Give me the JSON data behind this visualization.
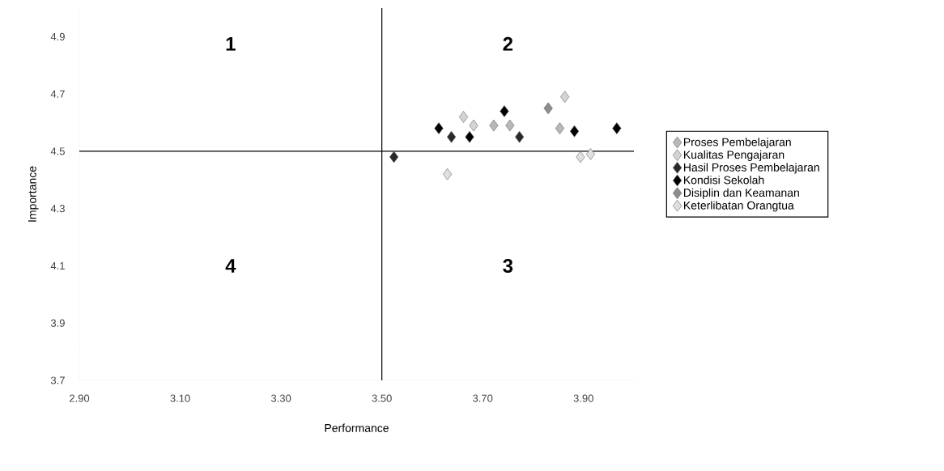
{
  "chart_data": {
    "type": "scatter",
    "xlabel": "Performance",
    "ylabel": "Importance",
    "xlim": [
      2.9,
      4.0
    ],
    "ylim": [
      3.7,
      5.0
    ],
    "xticks": [
      {
        "value": 2.9,
        "label": "2.90"
      },
      {
        "value": 3.1,
        "label": "3.10"
      },
      {
        "value": 3.3,
        "label": "3.30"
      },
      {
        "value": 3.5,
        "label": "3.50"
      },
      {
        "value": 3.7,
        "label": "3.70"
      },
      {
        "value": 3.9,
        "label": "3.90"
      }
    ],
    "yticks": [
      3.7,
      3.9,
      4.1,
      4.3,
      4.5,
      4.7,
      4.9
    ],
    "marker": "diamond",
    "legend": "right",
    "grid": false,
    "ref_lines": [
      {
        "axis": "x",
        "value": 3.5,
        "color": "#000000"
      },
      {
        "axis": "y",
        "value": 4.5,
        "color": "#000000"
      }
    ],
    "annotations": [
      "1",
      "2",
      "3",
      "4"
    ],
    "series": [
      {
        "name": "Proses Pembelajaran",
        "color": "#b8b8b8",
        "x": [
          3.722,
          3.754,
          3.853
        ],
        "values": [
          4.59,
          4.59,
          4.58
        ]
      },
      {
        "name": "Kualitas Pengajaran",
        "color": "#d4d4d4",
        "x": [
          3.662,
          3.682,
          3.863
        ],
        "values": [
          4.62,
          4.59,
          4.69
        ]
      },
      {
        "name": "Hasil Proses Pembelajaran",
        "color": "#2a2a2a",
        "x": [
          3.524,
          3.638,
          3.773
        ],
        "values": [
          4.48,
          4.55,
          4.55
        ]
      },
      {
        "name": "Kondisi Sekolah",
        "color": "#000000",
        "x": [
          3.613,
          3.674,
          3.743,
          3.882,
          3.966
        ],
        "values": [
          4.58,
          4.55,
          4.64,
          4.57,
          4.58
        ]
      },
      {
        "name": "Disiplin dan Keamanan",
        "color": "#8c8c8c",
        "x": [
          3.83
        ],
        "values": [
          4.65
        ]
      },
      {
        "name": "Keterlibatan Orangtua",
        "color": "#e0e0e0",
        "x": [
          3.63,
          3.894,
          3.914
        ],
        "values": [
          4.42,
          4.48,
          4.49
        ]
      }
    ]
  }
}
